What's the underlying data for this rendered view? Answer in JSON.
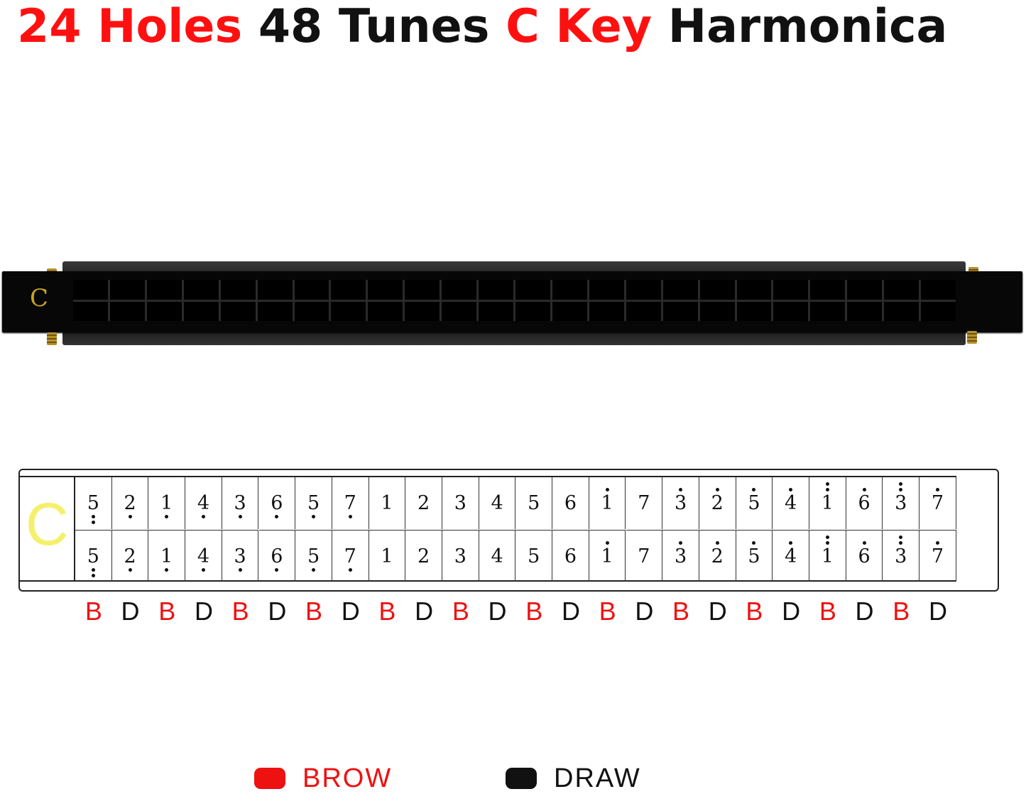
{
  "title": {
    "segments": [
      {
        "text": "24 Holes ",
        "color": "#ff1010"
      },
      {
        "text": "48 Tunes ",
        "color": "#111111"
      },
      {
        "text": "C Key ",
        "color": "#ff1010"
      },
      {
        "text": "Harmonica",
        "color": "#111111"
      }
    ]
  },
  "harmonica": {
    "key_label": "C",
    "key_color": "#c9a227",
    "holes": 24
  },
  "chart": {
    "key_label": "C",
    "key_color": "#f4f06a",
    "blow_row": [
      {
        "n": "5",
        "dots": -2
      },
      {
        "n": "2",
        "dots": -1
      },
      {
        "n": "1",
        "dots": -1
      },
      {
        "n": "4",
        "dots": -1
      },
      {
        "n": "3",
        "dots": -1
      },
      {
        "n": "6",
        "dots": -1
      },
      {
        "n": "5",
        "dots": -1
      },
      {
        "n": "7",
        "dots": -1
      },
      {
        "n": "1",
        "dots": 0
      },
      {
        "n": "2",
        "dots": 0
      },
      {
        "n": "3",
        "dots": 0
      },
      {
        "n": "4",
        "dots": 0
      },
      {
        "n": "5",
        "dots": 0
      },
      {
        "n": "6",
        "dots": 0
      },
      {
        "n": "1",
        "dots": 1
      },
      {
        "n": "7",
        "dots": 0
      },
      {
        "n": "3",
        "dots": 1
      },
      {
        "n": "2",
        "dots": 1
      },
      {
        "n": "5",
        "dots": 1
      },
      {
        "n": "4",
        "dots": 1
      },
      {
        "n": "1",
        "dots": 2
      },
      {
        "n": "6",
        "dots": 1
      },
      {
        "n": "3",
        "dots": 2
      },
      {
        "n": "7",
        "dots": 1
      }
    ],
    "draw_row": [
      {
        "n": "5",
        "dots": -2
      },
      {
        "n": "2",
        "dots": -1
      },
      {
        "n": "1",
        "dots": -1
      },
      {
        "n": "4",
        "dots": -1
      },
      {
        "n": "3",
        "dots": -1
      },
      {
        "n": "6",
        "dots": -1
      },
      {
        "n": "5",
        "dots": -1
      },
      {
        "n": "7",
        "dots": -1
      },
      {
        "n": "1",
        "dots": 0
      },
      {
        "n": "2",
        "dots": 0
      },
      {
        "n": "3",
        "dots": 0
      },
      {
        "n": "4",
        "dots": 0
      },
      {
        "n": "5",
        "dots": 0
      },
      {
        "n": "6",
        "dots": 0
      },
      {
        "n": "1",
        "dots": 1
      },
      {
        "n": "7",
        "dots": 0
      },
      {
        "n": "3",
        "dots": 1
      },
      {
        "n": "2",
        "dots": 1
      },
      {
        "n": "5",
        "dots": 1
      },
      {
        "n": "4",
        "dots": 1
      },
      {
        "n": "1",
        "dots": 2
      },
      {
        "n": "6",
        "dots": 1
      },
      {
        "n": "3",
        "dots": 2
      },
      {
        "n": "7",
        "dots": 1
      }
    ]
  },
  "labels": [
    "B",
    "D",
    "B",
    "D",
    "B",
    "D",
    "B",
    "D",
    "B",
    "D",
    "B",
    "D",
    "B",
    "D",
    "B",
    "D",
    "B",
    "D",
    "B",
    "D",
    "B",
    "D",
    "B",
    "D"
  ],
  "colors": {
    "blow": "#ee1111",
    "draw": "#111111"
  },
  "legend": {
    "blow": "BROW",
    "draw": "DRAW"
  }
}
